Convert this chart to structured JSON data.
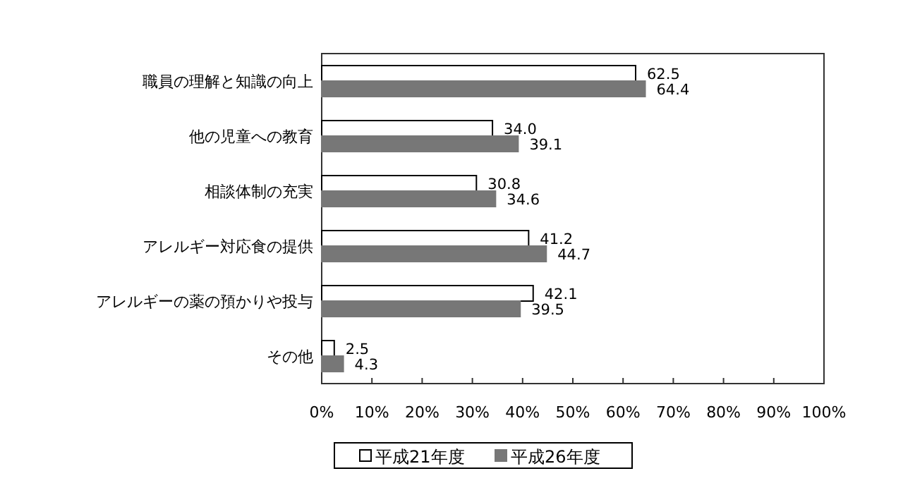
{
  "chart_data": {
    "type": "bar",
    "orientation": "horizontal",
    "categories": [
      "職員の理解と知識の向上",
      "他の児童への教育",
      "相談体制の充実",
      "アレルギー対応食の提供",
      "アレルギーの薬の預かりや投与",
      "その他"
    ],
    "series": [
      {
        "name": "平成21年度",
        "color": "#ffffff",
        "values": [
          62.5,
          34.0,
          30.8,
          41.2,
          42.1,
          2.5
        ],
        "value_labels": [
          "62.5",
          "34.0",
          "30.8",
          "41.2",
          "42.1",
          "2.5"
        ]
      },
      {
        "name": "平成26年度",
        "color": "#777777",
        "values": [
          64.4,
          39.1,
          34.6,
          44.7,
          39.5,
          4.3
        ],
        "value_labels": [
          "64.4",
          "39.1",
          "34.6",
          "44.7",
          "39.5",
          "4.3"
        ]
      }
    ],
    "xlim": [
      0,
      100
    ],
    "xticks": [
      {
        "value": 0,
        "label": "0%"
      },
      {
        "value": 10,
        "label": "10%"
      },
      {
        "value": 20,
        "label": "20%"
      },
      {
        "value": 30,
        "label": "30%"
      },
      {
        "value": 40,
        "label": "40%"
      },
      {
        "value": 50,
        "label": "50%"
      },
      {
        "value": 60,
        "label": "60%"
      },
      {
        "value": 70,
        "label": "70%"
      },
      {
        "value": 80,
        "label": "80%"
      },
      {
        "value": 90,
        "label": "90%"
      },
      {
        "value": 100,
        "label": "100%"
      }
    ],
    "legend": "bottom",
    "grid": false
  }
}
